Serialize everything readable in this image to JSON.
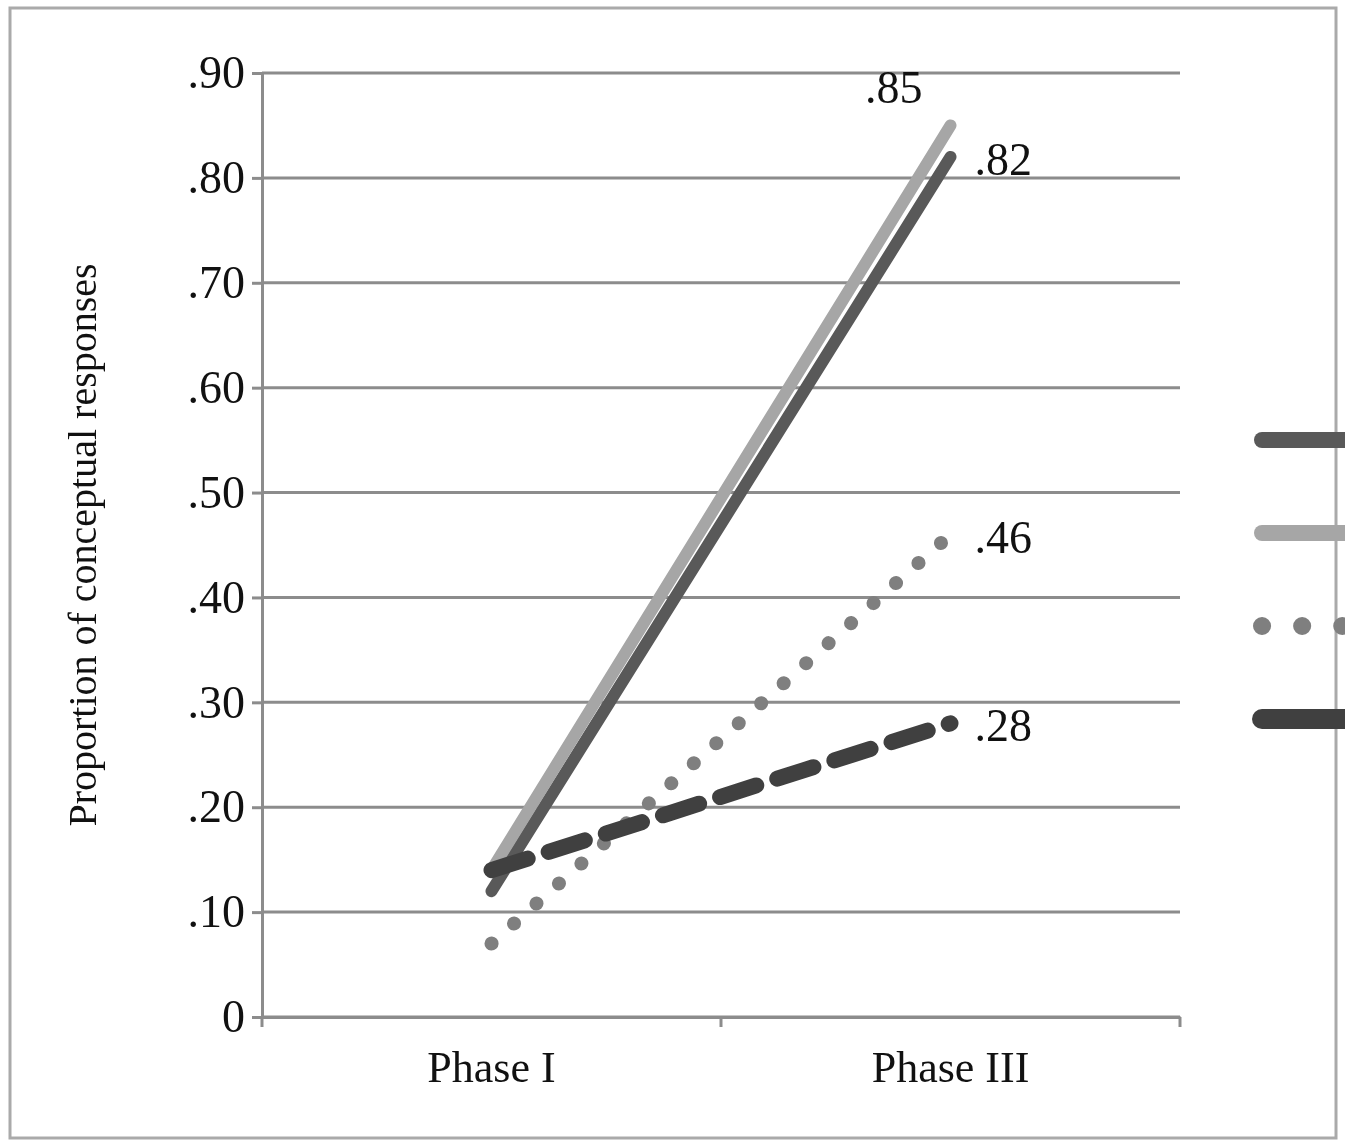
{
  "chart_data": {
    "type": "line",
    "ylabel": "Proportion of conceptual responses",
    "categories": [
      "Phase I",
      "Phase III"
    ],
    "series": [
      {
        "color": "#595959",
        "line_style": "solid",
        "values": [
          0.12,
          0.82
        ],
        "value_labels": [
          null,
          ".82"
        ]
      },
      {
        "color": "#a6a6a6",
        "line_style": "solid",
        "values": [
          0.14,
          0.85
        ],
        "value_labels": [
          null,
          ".85"
        ]
      },
      {
        "color": "#7f7f7f",
        "line_style": "dotted",
        "values": [
          0.07,
          0.46
        ],
        "value_labels": [
          null,
          ".46"
        ]
      },
      {
        "color": "#404040",
        "line_style": "dashed",
        "values": [
          0.14,
          0.28
        ],
        "value_labels": [
          null,
          ".28"
        ]
      }
    ],
    "ylim": [
      0,
      0.9
    ],
    "yticks": [
      {
        "value": 0,
        "label": "0"
      },
      {
        "value": 0.1,
        "label": ".10"
      },
      {
        "value": 0.2,
        "label": ".20"
      },
      {
        "value": 0.3,
        "label": ".30"
      },
      {
        "value": 0.4,
        "label": ".40"
      },
      {
        "value": 0.5,
        "label": ".50"
      },
      {
        "value": 0.6,
        "label": ".60"
      },
      {
        "value": 0.7,
        "label": ".70"
      },
      {
        "value": 0.8,
        "label": ".80"
      },
      {
        "value": 0.9,
        "label": ".90"
      }
    ],
    "grid": "y",
    "marker": "none"
  }
}
